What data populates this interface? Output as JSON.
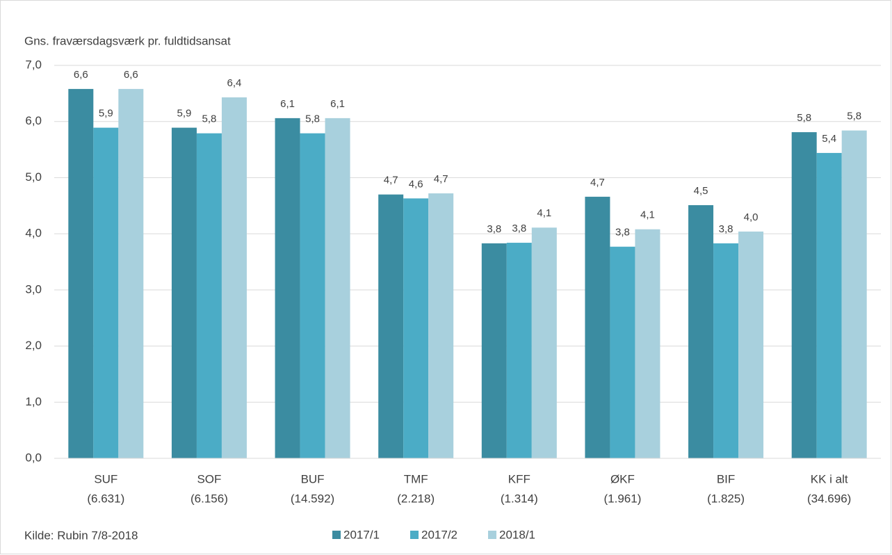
{
  "chart_data": {
    "type": "bar",
    "title": "Gns. fraværsdagsværk pr. fuldtidsansat",
    "source": "Kilde: Rubin 7/8-2018",
    "categories": [
      [
        "SUF",
        "(6.631)"
      ],
      [
        "SOF",
        "(6.156)"
      ],
      [
        "BUF",
        "(14.592)"
      ],
      [
        "TMF",
        "(2.218)"
      ],
      [
        "KFF",
        "(1.314)"
      ],
      [
        "ØKF",
        "(1.961)"
      ],
      [
        "BIF",
        "(1.825)"
      ],
      [
        "KK i alt",
        "(34.696)"
      ]
    ],
    "series": [
      {
        "name": "2017/1",
        "color": "#3b8ca1",
        "values": [
          6.58,
          5.89,
          6.06,
          4.7,
          3.83,
          4.66,
          4.51,
          5.81
        ],
        "value_labels": [
          "6,6",
          "5,9",
          "6,1",
          "4,7",
          "3,8",
          "4,7",
          "4,5",
          "5,8"
        ]
      },
      {
        "name": "2017/2",
        "color": "#4bacc6",
        "values": [
          5.89,
          5.79,
          5.79,
          4.63,
          3.84,
          3.77,
          3.83,
          5.44
        ],
        "value_labels": [
          "5,9",
          "5,8",
          "5,8",
          "4,6",
          "3,8",
          "3,8",
          "3,8",
          "5,4"
        ]
      },
      {
        "name": "2018/1",
        "color": "#a8d0dd",
        "values": [
          6.58,
          6.43,
          6.06,
          4.72,
          4.11,
          4.08,
          4.04,
          5.84
        ],
        "value_labels": [
          "6,6",
          "6,4",
          "6,1",
          "4,7",
          "4,1",
          "4,1",
          "4,0",
          "5,8"
        ]
      }
    ],
    "ylim": [
      0,
      7
    ],
    "yticks": [
      {
        "value": 0,
        "label": "0,0"
      },
      {
        "value": 1,
        "label": "1,0"
      },
      {
        "value": 2,
        "label": "2,0"
      },
      {
        "value": 3,
        "label": "3,0"
      },
      {
        "value": 4,
        "label": "4,0"
      },
      {
        "value": 5,
        "label": "5,0"
      },
      {
        "value": 6,
        "label": "6,0"
      },
      {
        "value": 7,
        "label": "7,0"
      }
    ],
    "grid": true,
    "legend": "bottom"
  }
}
